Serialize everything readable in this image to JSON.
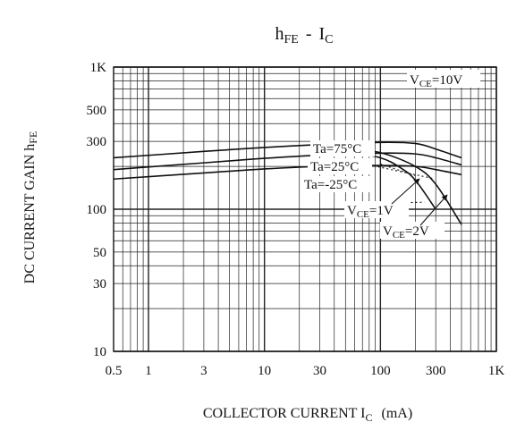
{
  "chart_data": {
    "type": "line",
    "title": {
      "main": "h",
      "main_sub": "FE",
      "sep": "-",
      "rhs": "I",
      "rhs_sub": "C"
    },
    "ylabel": {
      "main": "DC CURRENT GAIN h",
      "sub": "FE"
    },
    "xlabel": {
      "main": "COLLECTOR CURRENT I",
      "sub": "C",
      "unit": "(mA)"
    },
    "x_scale": "log",
    "y_scale": "log",
    "xlim": [
      0.5,
      1000
    ],
    "ylim": [
      10,
      1000
    ],
    "grid": true,
    "x_ticks": [
      {
        "v": 0.5,
        "label": "0.5"
      },
      {
        "v": 1,
        "label": "1"
      },
      {
        "v": 3,
        "label": "3"
      },
      {
        "v": 10,
        "label": "10"
      },
      {
        "v": 30,
        "label": "30"
      },
      {
        "v": 100,
        "label": "100"
      },
      {
        "v": 300,
        "label": "300"
      },
      {
        "v": 1000,
        "label": "1K"
      }
    ],
    "y_ticks": [
      {
        "v": 10,
        "label": "10"
      },
      {
        "v": 30,
        "label": "30"
      },
      {
        "v": 50,
        "label": "50"
      },
      {
        "v": 100,
        "label": "100"
      },
      {
        "v": 300,
        "label": "300"
      },
      {
        "v": 500,
        "label": "500"
      },
      {
        "v": 1000,
        "label": "1K"
      }
    ],
    "condition": {
      "main": "V",
      "sub": "CE",
      "rest": "=10V"
    },
    "series": [
      {
        "name": "Ta=75°C",
        "line": "solid",
        "x": [
          0.5,
          3,
          10,
          30,
          100,
          200,
          300,
          500
        ],
        "y": [
          230,
          255,
          272,
          285,
          295,
          290,
          265,
          230
        ]
      },
      {
        "name": "Ta=25°C",
        "line": "solid",
        "x": [
          0.5,
          3,
          10,
          30,
          100,
          200,
          300,
          500
        ],
        "y": [
          190,
          212,
          228,
          240,
          248,
          245,
          230,
          205
        ]
      },
      {
        "name": "Ta=-25°C",
        "line": "solid",
        "x": [
          0.5,
          3,
          10,
          30,
          100,
          200,
          300,
          500
        ],
        "y": [
          163,
          180,
          192,
          200,
          203,
          200,
          190,
          175
        ]
      },
      {
        "name": "",
        "line": "solid",
        "x": [
          50,
          100,
          150,
          200,
          300
        ],
        "y": [
          255,
          230,
          195,
          160,
          100
        ]
      },
      {
        "name": "",
        "line": "solid",
        "x": [
          50,
          100,
          200,
          300,
          500
        ],
        "y": [
          265,
          250,
          200,
          150,
          78
        ]
      },
      {
        "name": "",
        "line": "dashed",
        "x": [
          100,
          200
        ],
        "y": [
          208,
          172
        ]
      },
      {
        "name": "",
        "line": "dashed",
        "x": [
          80,
          280
        ],
        "y": [
          205,
          165
        ]
      },
      {
        "name": "",
        "line": "dashed",
        "x": [
          90,
          240
        ],
        "y": [
          110,
          112
        ]
      }
    ],
    "annotations": [
      {
        "text": "Ta=75°C",
        "target": 0
      },
      {
        "text": "Ta=25°C",
        "target": 1
      },
      {
        "text": "Ta=-25°C",
        "target": 2
      },
      {
        "main": "V",
        "sub": "CE",
        "rest": "=1V",
        "target": 3
      },
      {
        "main": "V",
        "sub": "CE",
        "rest": "=2V",
        "target": 4
      }
    ]
  }
}
